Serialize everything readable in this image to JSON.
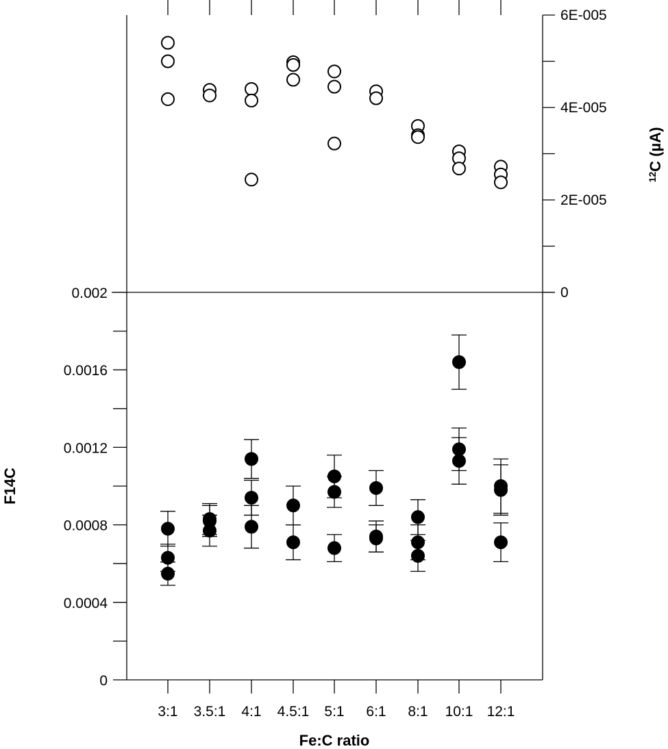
{
  "chart_data": {
    "type": "scatter",
    "xlabel": "Fe:C ratio",
    "categories": [
      "3:1",
      "3.5:1",
      "4:1",
      "4.5:1",
      "5:1",
      "6:1",
      "8:1",
      "10:1",
      "12:1"
    ],
    "top_panel": {
      "ylabel": "12C (µA)",
      "ylabel_sup": "12",
      "ylabel_main": "C (µA)",
      "ylim": [
        0,
        6e-05
      ],
      "yticks": [
        0,
        2e-05,
        4e-05,
        6e-05
      ],
      "ytick_labels": [
        "0",
        "2E-005",
        "4E-005",
        "6E-005"
      ],
      "series": [
        {
          "marker": "open-circle",
          "points": [
            {
              "category": "3:1",
              "y": 5.4e-05
            },
            {
              "category": "3:1",
              "y": 5e-05
            },
            {
              "category": "3:1",
              "y": 4.18e-05
            },
            {
              "category": "3.5:1",
              "y": 4.38e-05
            },
            {
              "category": "3.5:1",
              "y": 4.26e-05
            },
            {
              "category": "4:1",
              "y": 4.4e-05
            },
            {
              "category": "4:1",
              "y": 4.15e-05
            },
            {
              "category": "4:1",
              "y": 2.44e-05
            },
            {
              "category": "4.5:1",
              "y": 4.98e-05
            },
            {
              "category": "4.5:1",
              "y": 4.92e-05
            },
            {
              "category": "4.5:1",
              "y": 4.6e-05
            },
            {
              "category": "5:1",
              "y": 4.78e-05
            },
            {
              "category": "5:1",
              "y": 4.45e-05
            },
            {
              "category": "5:1",
              "y": 3.22e-05
            },
            {
              "category": "6:1",
              "y": 4.35e-05
            },
            {
              "category": "6:1",
              "y": 4.2e-05
            },
            {
              "category": "8:1",
              "y": 3.6e-05
            },
            {
              "category": "8:1",
              "y": 3.4e-05
            },
            {
              "category": "8:1",
              "y": 3.36e-05
            },
            {
              "category": "10:1",
              "y": 3.05e-05
            },
            {
              "category": "10:1",
              "y": 2.9e-05
            },
            {
              "category": "10:1",
              "y": 2.68e-05
            },
            {
              "category": "12:1",
              "y": 2.72e-05
            },
            {
              "category": "12:1",
              "y": 2.55e-05
            },
            {
              "category": "12:1",
              "y": 2.38e-05
            }
          ]
        }
      ]
    },
    "bottom_panel": {
      "ylabel": "F14C",
      "ylim": [
        0,
        0.002
      ],
      "yticks": [
        0,
        0.0004,
        0.0008,
        0.0012,
        0.0016,
        0.002
      ],
      "ytick_labels": [
        "0",
        "0.0004",
        "0.0008",
        "0.0012",
        "0.0016",
        "0.002"
      ],
      "series": [
        {
          "marker": "filled-circle",
          "points": [
            {
              "category": "3:1",
              "y": 0.00078,
              "err": 9e-05
            },
            {
              "category": "3:1",
              "y": 0.00063,
              "err": 7e-05
            },
            {
              "category": "3:1",
              "y": 0.000548,
              "err": 6e-05
            },
            {
              "category": "3.5:1",
              "y": 0.00083,
              "err": 8e-05
            },
            {
              "category": "3.5:1",
              "y": 0.00082,
              "err": 8e-05
            },
            {
              "category": "3.5:1",
              "y": 0.00077,
              "err": 8e-05
            },
            {
              "category": "4:1",
              "y": 0.00114,
              "err": 0.0001
            },
            {
              "category": "4:1",
              "y": 0.00094,
              "err": 9e-05
            },
            {
              "category": "4:1",
              "y": 0.00079,
              "err": 0.00011
            },
            {
              "category": "4.5:1",
              "y": 0.0009,
              "err": 0.0001
            },
            {
              "category": "4.5:1",
              "y": 0.00071,
              "err": 9e-05
            },
            {
              "category": "5:1",
              "y": 0.00105,
              "err": 0.00011
            },
            {
              "category": "5:1",
              "y": 0.00097,
              "err": 8e-05
            },
            {
              "category": "5:1",
              "y": 0.00068,
              "err": 7e-05
            },
            {
              "category": "6:1",
              "y": 0.00099,
              "err": 9e-05
            },
            {
              "category": "6:1",
              "y": 0.00074,
              "err": 8e-05
            },
            {
              "category": "6:1",
              "y": 0.00073,
              "err": 7e-05
            },
            {
              "category": "8:1",
              "y": 0.00084,
              "err": 9e-05
            },
            {
              "category": "8:1",
              "y": 0.00071,
              "err": 9e-05
            },
            {
              "category": "8:1",
              "y": 0.00064,
              "err": 8e-05
            },
            {
              "category": "10:1",
              "y": 0.00164,
              "err": 0.00014
            },
            {
              "category": "10:1",
              "y": 0.00119,
              "err": 0.00011
            },
            {
              "category": "10:1",
              "y": 0.00113,
              "err": 0.00012
            },
            {
              "category": "12:1",
              "y": 0.001,
              "err": 0.00014
            },
            {
              "category": "12:1",
              "y": 0.00098,
              "err": 0.00013
            },
            {
              "category": "12:1",
              "y": 0.00071,
              "err": 0.0001
            }
          ]
        }
      ]
    }
  }
}
